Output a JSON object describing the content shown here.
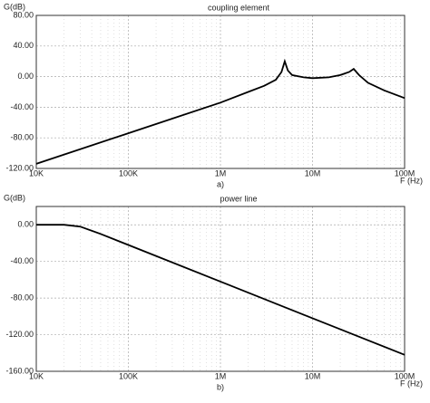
{
  "chart_data": [
    {
      "type": "line",
      "title": "coupling element",
      "y_label": "G(dB)",
      "x_label": "F (Hz)",
      "caption": "a)",
      "log_x": true,
      "grid": true,
      "color": "#000000",
      "x": [
        10000,
        100000,
        1000000,
        2000000,
        3000000,
        4000000,
        4600000,
        5000000,
        5400000,
        6000000,
        8000000,
        10000000,
        15000000,
        20000000,
        25000000,
        28000000,
        32000000,
        40000000,
        60000000,
        100000000
      ],
      "values": [
        -114,
        -74,
        -34,
        -20,
        -12,
        -4,
        6,
        20,
        8,
        2,
        -1,
        -2,
        -1,
        2,
        6,
        10,
        2,
        -8,
        -18,
        -28
      ],
      "xlim": [
        10000,
        100000000
      ],
      "xticks": [
        {
          "value": 10000,
          "label": "10K"
        },
        {
          "value": 100000,
          "label": "100K"
        },
        {
          "value": 1000000,
          "label": "1M"
        },
        {
          "value": 10000000,
          "label": "10M"
        },
        {
          "value": 100000000,
          "label": "100M"
        }
      ],
      "ylim": [
        -120,
        80
      ],
      "yticks": [
        {
          "value": 80,
          "label": "80.00"
        },
        {
          "value": 40,
          "label": "40.00"
        },
        {
          "value": 0,
          "label": "0.00"
        },
        {
          "value": -40,
          "label": "-40.00"
        },
        {
          "value": -80,
          "label": "-80.00"
        },
        {
          "value": -120,
          "label": "-120.00"
        }
      ]
    },
    {
      "type": "line",
      "title": "power line",
      "y_label": "G(dB)",
      "x_label": "F (Hz)",
      "caption": "b)",
      "log_x": true,
      "grid": true,
      "color": "#000000",
      "x": [
        10000,
        20000,
        30000,
        50000,
        100000,
        1000000,
        10000000,
        100000000
      ],
      "values": [
        0,
        0,
        -2,
        -10,
        -22,
        -62,
        -102,
        -142
      ],
      "xlim": [
        10000,
        100000000
      ],
      "xticks": [
        {
          "value": 10000,
          "label": "10K"
        },
        {
          "value": 100000,
          "label": "100K"
        },
        {
          "value": 1000000,
          "label": "1M"
        },
        {
          "value": 10000000,
          "label": "10M"
        },
        {
          "value": 100000000,
          "label": "100M"
        }
      ],
      "ylim": [
        -160,
        20
      ],
      "yticks": [
        {
          "value": 0,
          "label": "0.00"
        },
        {
          "value": -40,
          "label": "-40.00"
        },
        {
          "value": -80,
          "label": "-80.00"
        },
        {
          "value": -120,
          "label": "-120.00"
        },
        {
          "value": -160,
          "label": "-160.00"
        }
      ]
    }
  ]
}
